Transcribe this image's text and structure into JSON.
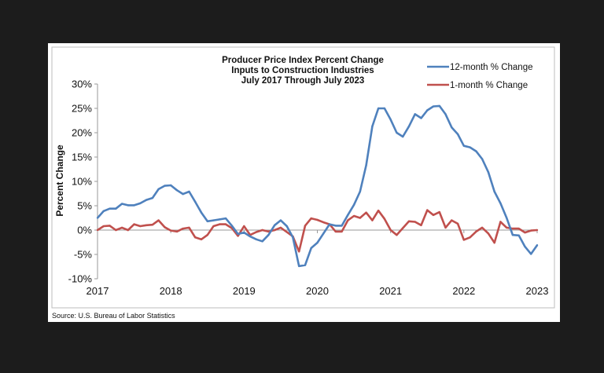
{
  "chart_data": {
    "type": "line",
    "title": [
      "Producer Price Index Percent Change",
      "Inputs to Construction Industries",
      "July 2017 Through July 2023"
    ],
    "ylabel": "Percent Change",
    "xlabel": "",
    "ylim": [
      -10,
      30
    ],
    "yticks": [
      "30%",
      "25%",
      "20%",
      "15%",
      "10%",
      "5%",
      "0%",
      "-5%",
      "-10%"
    ],
    "xticks": [
      "2017",
      "2018",
      "2019",
      "2020",
      "2021",
      "2022",
      "2023"
    ],
    "x": [
      "2017-07",
      "2017-08",
      "2017-09",
      "2017-10",
      "2017-11",
      "2017-12",
      "2018-01",
      "2018-02",
      "2018-03",
      "2018-04",
      "2018-05",
      "2018-06",
      "2018-07",
      "2018-08",
      "2018-09",
      "2018-10",
      "2018-11",
      "2018-12",
      "2019-01",
      "2019-02",
      "2019-03",
      "2019-04",
      "2019-05",
      "2019-06",
      "2019-07",
      "2019-08",
      "2019-09",
      "2019-10",
      "2019-11",
      "2019-12",
      "2020-01",
      "2020-02",
      "2020-03",
      "2020-04",
      "2020-05",
      "2020-06",
      "2020-07",
      "2020-08",
      "2020-09",
      "2020-10",
      "2020-11",
      "2020-12",
      "2021-01",
      "2021-02",
      "2021-03",
      "2021-04",
      "2021-05",
      "2021-06",
      "2021-07",
      "2021-08",
      "2021-09",
      "2021-10",
      "2021-11",
      "2021-12",
      "2022-01",
      "2022-02",
      "2022-03",
      "2022-04",
      "2022-05",
      "2022-06",
      "2022-07",
      "2022-08",
      "2022-09",
      "2022-10",
      "2022-11",
      "2022-12",
      "2023-01",
      "2023-02",
      "2023-03",
      "2023-04",
      "2023-05",
      "2023-06",
      "2023-07"
    ],
    "series": [
      {
        "name": "12-month % Change",
        "color": "#4f81bd",
        "values": [
          2.5,
          3.9,
          4.4,
          4.4,
          5.4,
          5.1,
          5.1,
          5.5,
          6.2,
          6.6,
          8.4,
          9.1,
          9.2,
          8.2,
          7.4,
          7.9,
          5.8,
          3.6,
          1.8,
          2.0,
          2.2,
          2.4,
          0.9,
          -0.8,
          -0.5,
          -1.3,
          -1.9,
          -2.3,
          -1.0,
          1.0,
          2.0,
          0.8,
          -1.5,
          -7.4,
          -7.2,
          -3.7,
          -2.6,
          -0.7,
          1.2,
          0.9,
          0.9,
          3.1,
          5.2,
          7.9,
          13.3,
          21.3,
          25.0,
          25.0,
          22.7,
          20.0,
          19.2,
          21.3,
          23.8,
          23.0,
          24.6,
          25.4,
          25.5,
          23.8,
          21.1,
          19.7,
          17.3,
          17.0,
          16.2,
          14.6,
          11.9,
          7.9,
          5.5,
          2.5,
          -1.0,
          -1.1,
          -3.4,
          -4.9,
          -3.1
        ]
      },
      {
        "name": "1-month % Change",
        "color": "#c0504d",
        "values": [
          0,
          0.8,
          0.9,
          0,
          0.5,
          0,
          1.2,
          0.8,
          1.0,
          1.1,
          2.0,
          0.6,
          -0.1,
          -0.3,
          0.3,
          0.5,
          -1.5,
          -1.9,
          -1.0,
          0.8,
          1.2,
          1.2,
          0.4,
          -1.2,
          0.8,
          -1.0,
          -0.4,
          0,
          -0.3,
          0,
          0.5,
          -0.4,
          -1.3,
          -4.4,
          0.9,
          2.4,
          2.1,
          1.6,
          1.2,
          -0.3,
          -0.3,
          2.0,
          2.9,
          2.5,
          3.6,
          2.0,
          4.0,
          2.3,
          0,
          -1.0,
          0.4,
          1.8,
          1.7,
          1.0,
          4.1,
          3.1,
          3.7,
          0.5,
          2.0,
          1.3,
          -2.0,
          -1.5,
          -0.3,
          0.5,
          -0.7,
          -2.6,
          1.7,
          0.5,
          0.3,
          0.3,
          -0.5,
          -0.1,
          0
        ]
      }
    ],
    "legend_position": "top-right",
    "grid": false,
    "source": "Source: U.S. Bureau of Labor Statistics"
  }
}
